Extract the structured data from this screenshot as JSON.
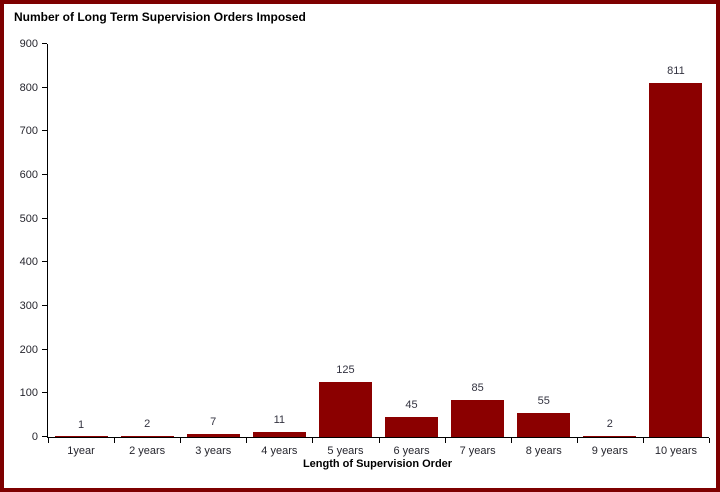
{
  "window": {
    "frame_border_color": "#7e0000",
    "background_color": "#ffffff",
    "axis_color": "#000000"
  },
  "chart_data": {
    "type": "bar",
    "title": "Number of Long Term Supervision Orders Imposed",
    "xlabel": "Length of Supervision Order",
    "ylabel": "",
    "categories": [
      "1year",
      "2 years",
      "3 years",
      "4 years",
      "5 years",
      "6 years",
      "7 years",
      "8 years",
      "9 years",
      "10 years"
    ],
    "values": [
      1,
      2,
      7,
      11,
      125,
      45,
      85,
      55,
      2,
      811
    ],
    "data_labels_visible": true,
    "ylim": [
      0,
      900
    ],
    "ytick_step": 100,
    "ytick_labels": [
      "0",
      "100",
      "200",
      "300",
      "400",
      "500",
      "600",
      "700",
      "800",
      "900"
    ],
    "grid": false,
    "legend_position": "none",
    "bar_color": "#8b0000",
    "value_label_color": "#333340",
    "tick_label_color": "#26262e"
  }
}
